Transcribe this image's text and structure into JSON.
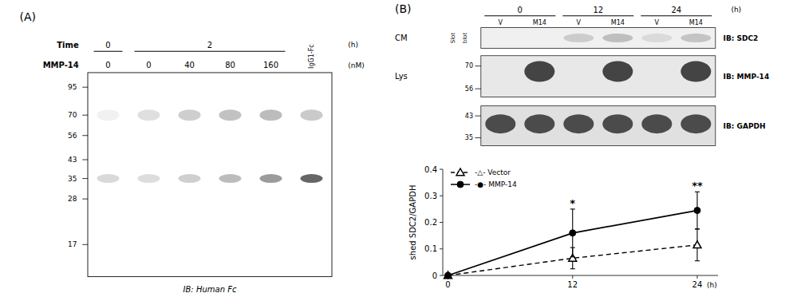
{
  "chart_data": [
    {
      "type": "blot",
      "title": "(A)",
      "rows": [
        {
          "label": "Time",
          "unit": "(h)",
          "type": "bracket",
          "values": [
            "0",
            "2",
            "2",
            "2",
            "2",
            null
          ]
        },
        {
          "label": "MMP-14",
          "unit": "(nM)",
          "values": [
            "0",
            "0",
            "40",
            "80",
            "160",
            null
          ]
        }
      ],
      "lane_labels": [
        null,
        null,
        null,
        null,
        null,
        "IgG1-Fc"
      ],
      "mw_markers": [
        95,
        70,
        56,
        43,
        35,
        28,
        17
      ],
      "bands": [
        {
          "mw": 70,
          "color": "#505050",
          "values": [
            0.08,
            0.18,
            0.28,
            0.35,
            0.38,
            0.3
          ]
        },
        {
          "mw": 35,
          "color": "#404040",
          "values": [
            0.2,
            0.18,
            0.25,
            0.35,
            0.52,
            0.8
          ]
        }
      ],
      "footer": "IB: Human Fc"
    },
    {
      "type": "blot",
      "title": "(B)",
      "time": [
        "0",
        "0",
        "12",
        "12",
        "24",
        "24"
      ],
      "unit": "(h)",
      "lane_labels": [
        "V",
        "M14",
        "V",
        "M14",
        "V",
        "M14"
      ],
      "blots": [
        {
          "sample": "CM",
          "method": [
            "Slot",
            "blot"
          ],
          "name": "IB: SDC2",
          "color": "#606060",
          "values": [
            0.0,
            0.0,
            0.25,
            0.35,
            0.15,
            0.3
          ]
        },
        {
          "sample": "Lys",
          "name": "IB: MMP-14",
          "mw_markers": [
            70,
            56
          ],
          "color": "#1a1a1a",
          "values": [
            0.0,
            0.8,
            0.0,
            0.8,
            0.0,
            0.8
          ]
        },
        {
          "name": "IB: GAPDH",
          "mw_markers": [
            43,
            35
          ],
          "color": "#1a1a1a",
          "values": [
            0.75,
            0.75,
            0.75,
            0.75,
            0.75,
            0.75
          ]
        }
      ]
    },
    {
      "type": "line",
      "y_label": "shed SDC2/GAPDH",
      "x_unit": "(h)",
      "x": [
        0,
        12,
        24
      ],
      "series": [
        {
          "name": "-△- Vector",
          "color": "black",
          "line_style": "dashed",
          "marker": "open-triangle",
          "values": [
            0.0,
            0.065,
            0.115
          ],
          "errors": [
            0.0,
            0.04,
            0.06
          ]
        },
        {
          "name": "-●- MMP-14",
          "color": "black",
          "line_style": "solid",
          "marker": "circle",
          "values": [
            0.0,
            0.16,
            0.245
          ],
          "errors": [
            0.0,
            0.09,
            0.07
          ]
        }
      ],
      "annotations": [
        {
          "x": 12,
          "text": "*"
        },
        {
          "x": 24,
          "text": "**"
        }
      ],
      "xlim": [
        -0.5,
        26
      ],
      "ylim": [
        0,
        0.4
      ],
      "xticks": [
        0,
        12,
        24
      ],
      "yticks": [
        0,
        0.1,
        0.2,
        0.3,
        0.4
      ],
      "legend": "upper-left"
    }
  ]
}
